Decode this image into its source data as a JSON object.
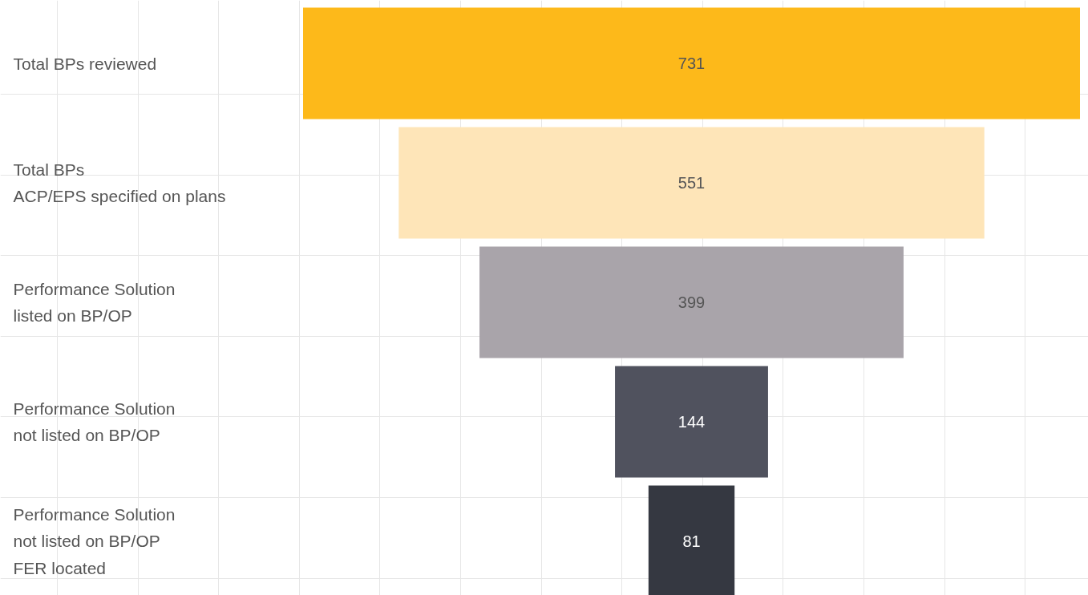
{
  "chart_data": {
    "type": "other",
    "categories": [
      "Total BPs reviewed",
      "Total BPs\nACP/EPS specified on plans",
      "Performance Solution\nlisted on BP/OP",
      "Performance Solution\nnot listed on BP/OP",
      "Performance Solution\nnot listed on BP/OP\nFER located"
    ],
    "values": [
      731,
      551,
      399,
      144,
      81
    ],
    "colors": [
      "#fdb91a",
      "#fee5b8",
      "#a9a4aa",
      "#50525e",
      "#353841"
    ],
    "data_labels": true
  }
}
